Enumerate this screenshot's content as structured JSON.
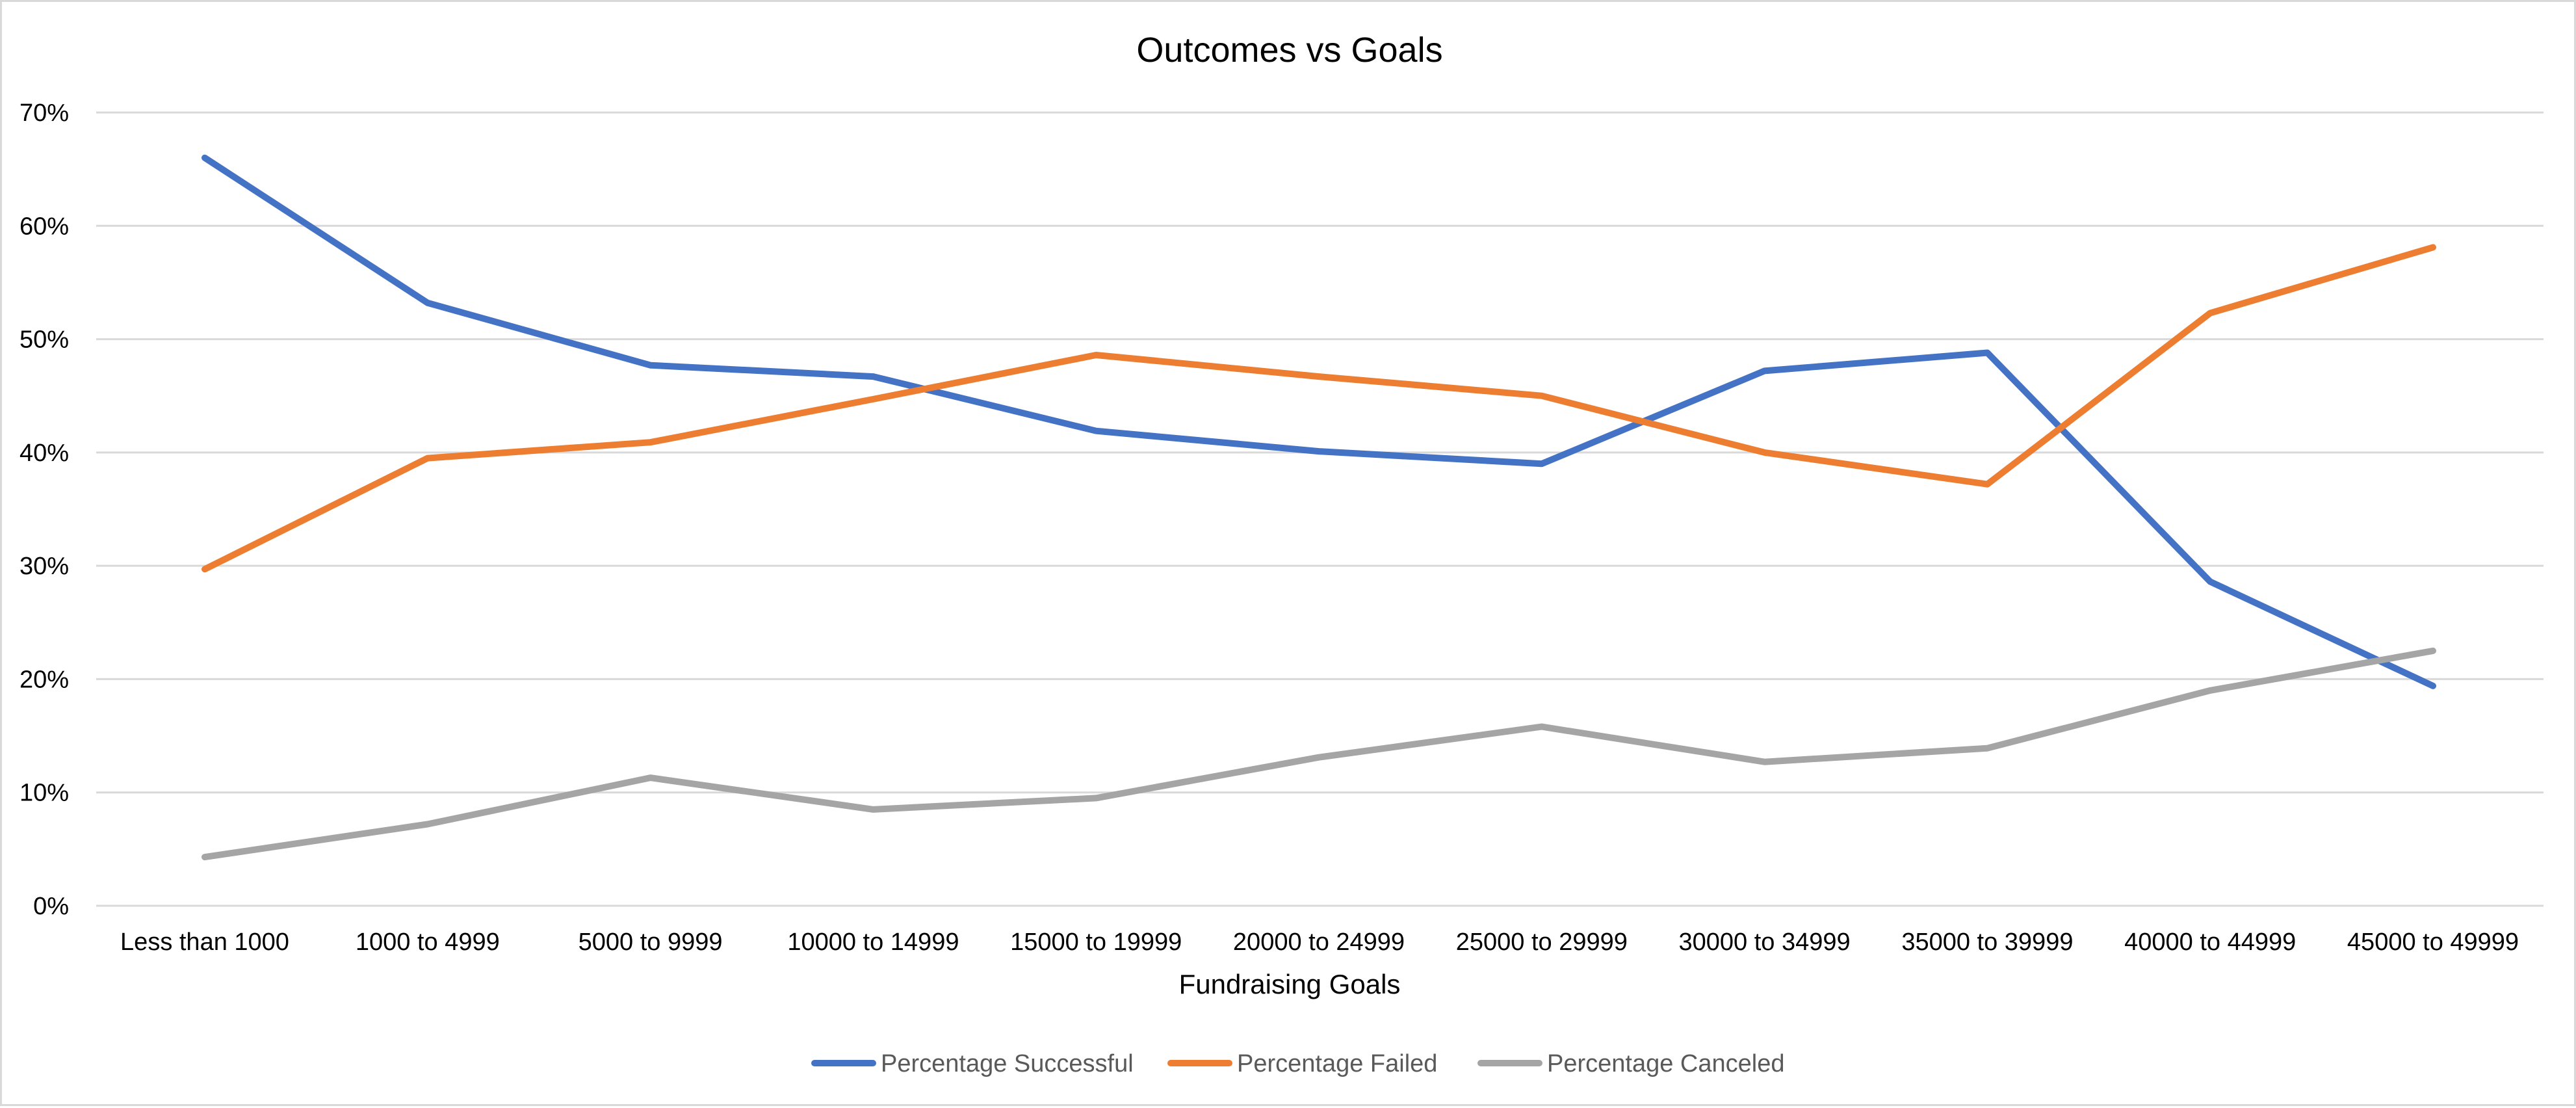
{
  "chart_data": {
    "type": "line",
    "title": "Outcomes vs Goals",
    "xlabel": "Fundraising Goals",
    "ylabel": "",
    "ylim": [
      0,
      0.7
    ],
    "ytick_values": [
      0,
      0.1,
      0.2,
      0.3,
      0.4,
      0.5,
      0.6,
      0.7
    ],
    "ytick_labels": [
      "0%",
      "10%",
      "20%",
      "30%",
      "40%",
      "50%",
      "60%",
      "70%"
    ],
    "grid": "horizontal",
    "legend_position": "bottom",
    "categories": [
      "Less than 1000",
      "1000 to 4999",
      "5000 to 9999",
      "10000 to 14999",
      "15000 to 19999",
      "20000 to 24999",
      "25000 to 29999",
      "30000 to 34999",
      "35000 to 39999",
      "40000 to 44999",
      "45000 to 49999"
    ],
    "series": [
      {
        "name": "Percentage Successful",
        "color": "#4472c4",
        "values": [
          0.66,
          0.532,
          0.477,
          0.467,
          0.419,
          0.401,
          0.39,
          0.472,
          0.488,
          0.286,
          0.194
        ]
      },
      {
        "name": "Percentage Failed",
        "color": "#ed7d31",
        "values": [
          0.297,
          0.395,
          0.409,
          0.447,
          0.486,
          0.467,
          0.45,
          0.4,
          0.372,
          0.523,
          0.581
        ]
      },
      {
        "name": "Percentage Canceled",
        "color": "#a5a5a5",
        "values": [
          0.043,
          0.072,
          0.113,
          0.085,
          0.095,
          0.131,
          0.158,
          0.127,
          0.139,
          0.19,
          0.225
        ]
      }
    ]
  }
}
